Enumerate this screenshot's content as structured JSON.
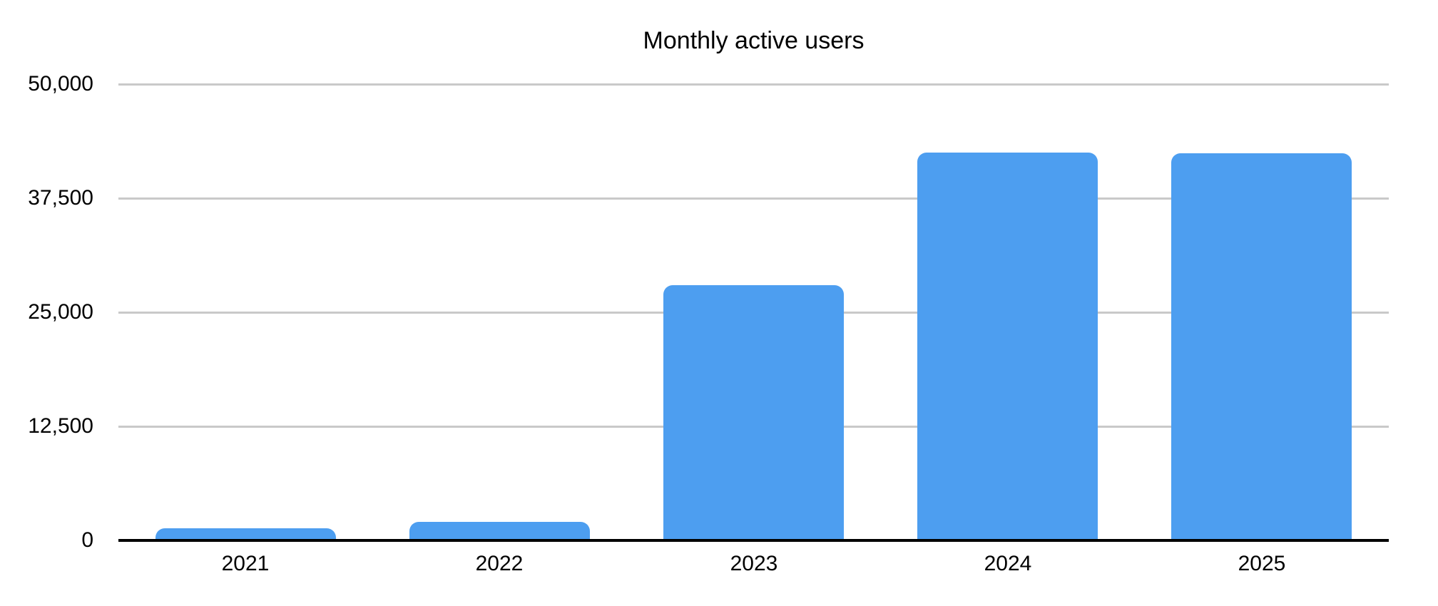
{
  "chart_data": {
    "type": "bar",
    "title": "Monthly active users",
    "categories": [
      "2021",
      "2022",
      "2023",
      "2024",
      "2025"
    ],
    "values": [
      1300,
      2000,
      28000,
      42500,
      42400
    ],
    "xlabel": "",
    "ylabel": "",
    "ylim": [
      0,
      50000
    ],
    "y_ticks": [
      {
        "value": 0,
        "label": "0"
      },
      {
        "value": 12500,
        "label": "12,500"
      },
      {
        "value": 25000,
        "label": "25,000"
      },
      {
        "value": 37500,
        "label": "37,500"
      },
      {
        "value": 50000,
        "label": "50,000"
      }
    ],
    "grid": "horizontal",
    "legend_position": "none",
    "colors": {
      "bar": "#4D9EF0",
      "gridline": "#C9C9C9",
      "axis": "#000000",
      "text": "#000000",
      "background": "#FFFFFF"
    }
  }
}
